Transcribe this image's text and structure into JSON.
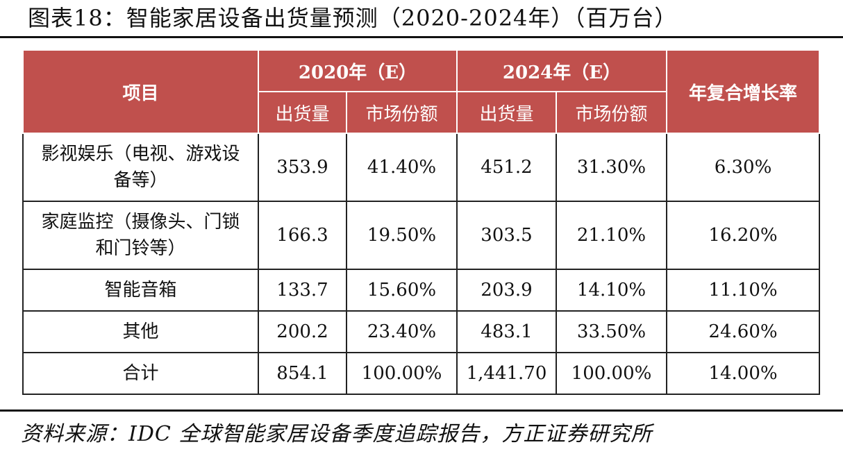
{
  "title": "图表18：智能家居设备出货量预测（2020-2024年）（百万台）",
  "table": {
    "item_header": "项目",
    "year1_header": "2020年（E）",
    "year2_header": "2024年（E）",
    "cagr_header": "年复合增长率",
    "sub_shipments": "出货量",
    "sub_share": "市场份额",
    "rows": [
      {
        "category": "影视娱乐（电视、游戏设备等）",
        "ship2020": "353.9",
        "share2020": "41.40%",
        "ship2024": "451.2",
        "share2024": "31.30%",
        "cagr": "6.30%"
      },
      {
        "category": "家庭监控（摄像头、门锁和门铃等）",
        "ship2020": "166.3",
        "share2020": "19.50%",
        "ship2024": "303.5",
        "share2024": "21.10%",
        "cagr": "16.20%"
      },
      {
        "category": "智能音箱",
        "ship2020": "133.7",
        "share2020": "15.60%",
        "ship2024": "203.9",
        "share2024": "14.10%",
        "cagr": "11.10%"
      },
      {
        "category": "其他",
        "ship2020": "200.2",
        "share2020": "23.40%",
        "ship2024": "483.1",
        "share2024": "33.50%",
        "cagr": "24.60%"
      },
      {
        "category": "合计",
        "ship2020": "854.1",
        "share2020": "100.00%",
        "ship2024": "1,441.70",
        "share2024": "100.00%",
        "cagr": "14.00%"
      }
    ]
  },
  "source": "资料来源：IDC 全球智能家居设备季度追踪报告，方正证券研究所"
}
